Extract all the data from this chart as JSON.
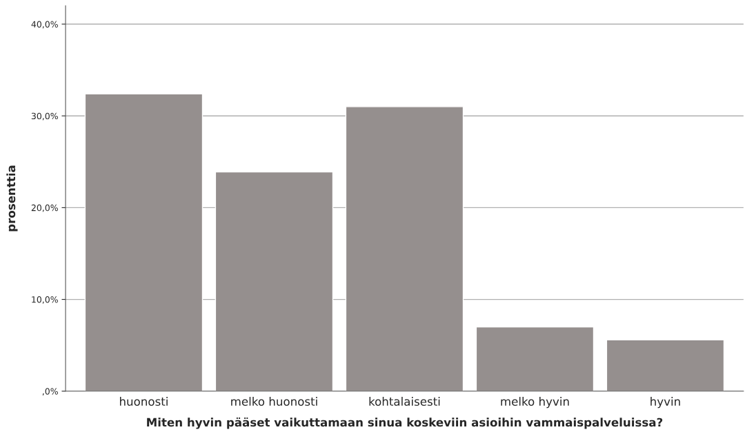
{
  "chart_data": {
    "type": "bar",
    "xlabel": "Miten hyvin pääset vaikuttamaan sinua koskeviin asioihin vammaispalveluissa?",
    "ylabel": "prosenttia",
    "categories": [
      "huonosti",
      "melko huonosti",
      "kohtalaisesti",
      "melko hyvin",
      "hyvin"
    ],
    "values": [
      32.4,
      23.9,
      31.0,
      7.0,
      5.6
    ],
    "color": "#958f8e",
    "ylim": [
      0,
      42
    ],
    "yticks": [
      {
        "value": 0,
        "label": ",0%"
      },
      {
        "value": 10,
        "label": "10,0%"
      },
      {
        "value": 20,
        "label": "20,0%"
      },
      {
        "value": 30,
        "label": "30,0%"
      },
      {
        "value": 40,
        "label": "40,0%"
      }
    ],
    "grid": "y",
    "legend": false
  }
}
